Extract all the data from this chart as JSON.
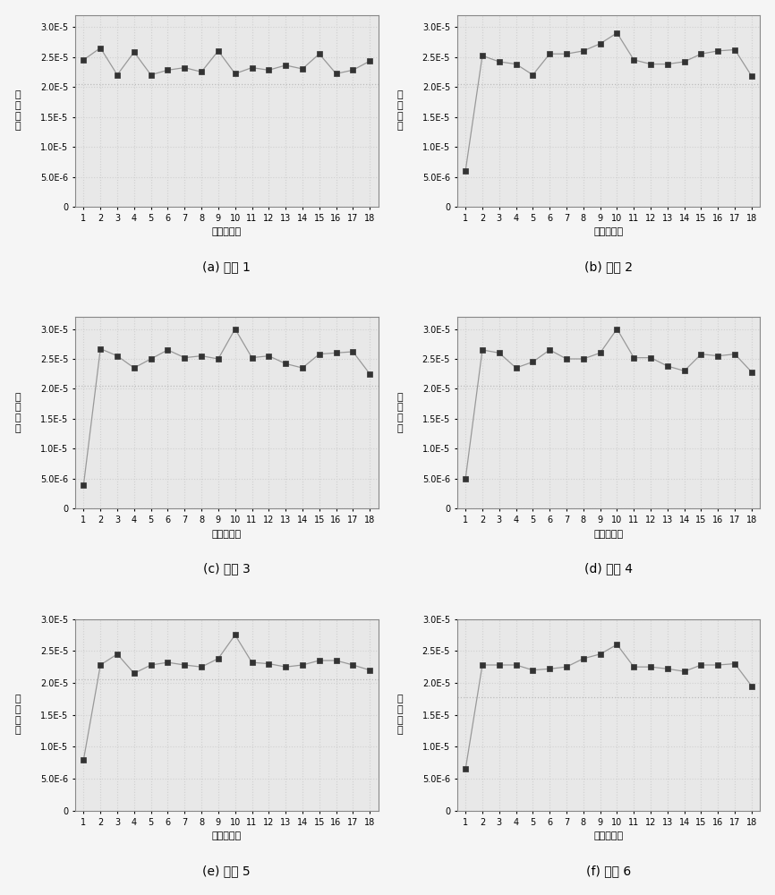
{
  "subplots": [
    {
      "label": "(a) 工况 1",
      "x": [
        1,
        2,
        3,
        4,
        5,
        6,
        7,
        8,
        9,
        10,
        11,
        12,
        13,
        14,
        15,
        16,
        17,
        18
      ],
      "y": [
        2.45e-05,
        2.65e-05,
        2.2e-05,
        2.58e-05,
        2.2e-05,
        2.28e-05,
        2.32e-05,
        2.25e-05,
        2.6e-05,
        2.22e-05,
        2.32e-05,
        2.28e-05,
        2.36e-05,
        2.3e-05,
        2.55e-05,
        2.22e-05,
        2.28e-05,
        2.43e-05
      ],
      "hline": 2.05e-05,
      "ylim": [
        0,
        3.2e-05
      ],
      "yticks": [
        0,
        5e-06,
        1e-05,
        1.5e-05,
        2e-05,
        2.5e-05,
        3e-05
      ]
    },
    {
      "label": "(b) 工况 2",
      "x": [
        1,
        2,
        3,
        4,
        5,
        6,
        7,
        8,
        9,
        10,
        11,
        12,
        13,
        14,
        15,
        16,
        17,
        18
      ],
      "y": [
        6e-06,
        2.52e-05,
        2.42e-05,
        2.38e-05,
        2.2e-05,
        2.55e-05,
        2.55e-05,
        2.6e-05,
        2.72e-05,
        2.9e-05,
        2.45e-05,
        2.38e-05,
        2.38e-05,
        2.42e-05,
        2.55e-05,
        2.6e-05,
        2.62e-05,
        2.18e-05
      ],
      "hline": 2.05e-05,
      "ylim": [
        0,
        3.2e-05
      ],
      "yticks": [
        0,
        5e-06,
        1e-05,
        1.5e-05,
        2e-05,
        2.5e-05,
        3e-05
      ]
    },
    {
      "label": "(c) 工况 3",
      "x": [
        1,
        2,
        3,
        4,
        5,
        6,
        7,
        8,
        9,
        10,
        11,
        12,
        13,
        14,
        15,
        16,
        17,
        18
      ],
      "y": [
        4e-06,
        2.67e-05,
        2.55e-05,
        2.35e-05,
        2.5e-05,
        2.65e-05,
        2.52e-05,
        2.55e-05,
        2.5e-05,
        3e-05,
        2.52e-05,
        2.55e-05,
        2.42e-05,
        2.35e-05,
        2.58e-05,
        2.6e-05,
        2.62e-05,
        2.25e-05
      ],
      "hline": 2.05e-05,
      "ylim": [
        0,
        3.2e-05
      ],
      "yticks": [
        0,
        5e-06,
        1e-05,
        1.5e-05,
        2e-05,
        2.5e-05,
        3e-05
      ]
    },
    {
      "label": "(d) 工况 4",
      "x": [
        1,
        2,
        3,
        4,
        5,
        6,
        7,
        8,
        9,
        10,
        11,
        12,
        13,
        14,
        15,
        16,
        17,
        18
      ],
      "y": [
        5e-06,
        2.65e-05,
        2.6e-05,
        2.35e-05,
        2.45e-05,
        2.65e-05,
        2.5e-05,
        2.5e-05,
        2.6e-05,
        3e-05,
        2.52e-05,
        2.52e-05,
        2.38e-05,
        2.3e-05,
        2.58e-05,
        2.55e-05,
        2.58e-05,
        2.28e-05
      ],
      "hline": 2.05e-05,
      "ylim": [
        0,
        3.2e-05
      ],
      "yticks": [
        0,
        5e-06,
        1e-05,
        1.5e-05,
        2e-05,
        2.5e-05,
        3e-05
      ]
    },
    {
      "label": "(e) 工况 5",
      "x": [
        1,
        2,
        3,
        4,
        5,
        6,
        7,
        8,
        9,
        10,
        11,
        12,
        13,
        14,
        15,
        16,
        17,
        18
      ],
      "y": [
        8e-06,
        2.28e-05,
        2.45e-05,
        2.15e-05,
        2.28e-05,
        2.32e-05,
        2.28e-05,
        2.25e-05,
        2.38e-05,
        2.75e-05,
        2.32e-05,
        2.3e-05,
        2.25e-05,
        2.28e-05,
        2.35e-05,
        2.35e-05,
        2.28e-05,
        2.2e-05
      ],
      "hline": 2.05e-05,
      "ylim": [
        0,
        3e-05
      ],
      "yticks": [
        0,
        5e-06,
        1e-05,
        1.5e-05,
        2e-05,
        2.5e-05,
        3e-05
      ]
    },
    {
      "label": "(f) 工况 6",
      "x": [
        1,
        2,
        3,
        4,
        5,
        6,
        7,
        8,
        9,
        10,
        11,
        12,
        13,
        14,
        15,
        16,
        17,
        18
      ],
      "y": [
        6.5e-06,
        2.28e-05,
        2.28e-05,
        2.28e-05,
        2.2e-05,
        2.22e-05,
        2.25e-05,
        2.38e-05,
        2.45e-05,
        2.6e-05,
        2.25e-05,
        2.25e-05,
        2.22e-05,
        2.18e-05,
        2.28e-05,
        2.28e-05,
        2.3e-05,
        1.95e-05
      ],
      "hline": 1.78e-05,
      "ylim": [
        0,
        3e-05
      ],
      "yticks": [
        0,
        5e-06,
        1e-05,
        1.5e-05,
        2e-05,
        2.5e-05,
        3e-05
      ]
    }
  ],
  "xlabel": "定子齿编号",
  "ylabel_chars": [
    "磁",
    "密",
    "振",
    "幅"
  ],
  "line_color": "#999999",
  "marker": "s",
  "marker_facecolor": "#333333",
  "marker_edgecolor": "#333333",
  "marker_size": 4,
  "hline_color": "#bbbbbb",
  "hline_style": ":",
  "plot_bg_color": "#e8e8e8",
  "fig_bg_color": "#f5f5f5",
  "grid_color": "#d0d0d0",
  "title_fontsize": 10,
  "label_fontsize": 8,
  "tick_fontsize": 7
}
